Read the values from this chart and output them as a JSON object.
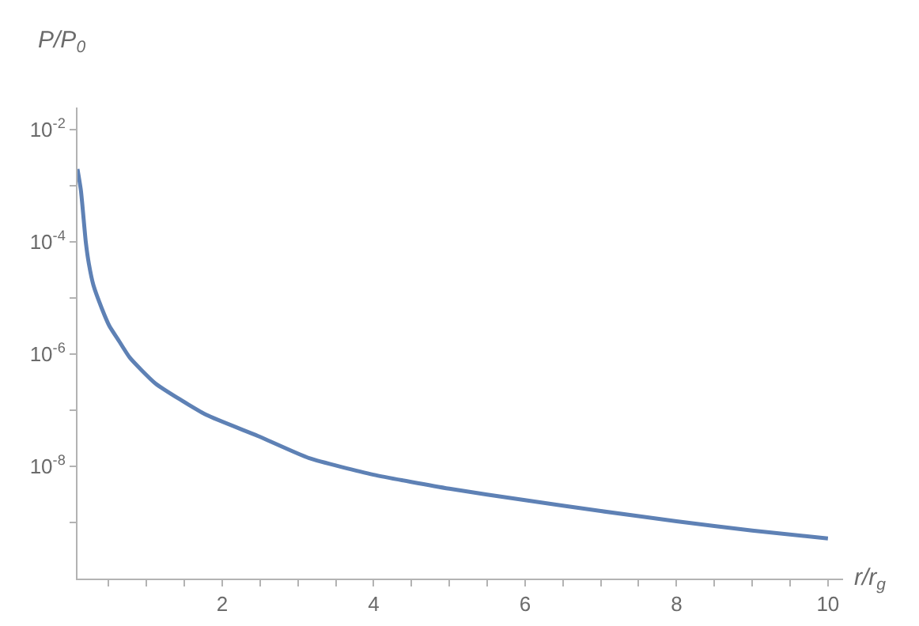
{
  "chart_data": {
    "type": "line",
    "xlabel": "r/r$_{g}$",
    "ylabel": "P/P$_{0}$",
    "log": "y",
    "grid": false,
    "marker": "none",
    "line_style": "solid",
    "x": [
      0.09,
      0.136,
      0.2,
      0.24,
      0.3,
      0.41,
      0.51,
      0.64,
      0.78,
      1.12,
      1.79,
      2.47,
      3.15,
      4,
      5,
      6,
      7,
      8,
      9,
      10
    ],
    "series": [
      {
        "color": "#5e81b5",
        "values": [
          0.002,
          0.00081,
          9.8e-05,
          4.1e-05,
          1.7e-05,
          6.6e-06,
          3.2e-06,
          1.7e-06,
          8.7e-07,
          3e-07,
          8.3e-08,
          3.5e-08,
          1.4e-08,
          7.1e-09,
          4e-09,
          2.5e-09,
          1.6e-09,
          1.05e-09,
          7.2e-10,
          5.2e-10
        ]
      }
    ],
    "xlim": [
      0.09,
      10.2
    ],
    "ylim": [
      1e-10,
      0.025
    ],
    "xticks": [
      {
        "value": 0.5,
        "label": null
      },
      {
        "value": 1,
        "label": null
      },
      {
        "value": 1.5,
        "label": null
      },
      2,
      {
        "value": 2.5,
        "label": null
      },
      {
        "value": 3,
        "label": null
      },
      {
        "value": 3.5,
        "label": null
      },
      4,
      {
        "value": 4.5,
        "label": null
      },
      {
        "value": 5,
        "label": null
      },
      {
        "value": 5.5,
        "label": null
      },
      6,
      {
        "value": 6.5,
        "label": null
      },
      {
        "value": 7,
        "label": null
      },
      {
        "value": 7.5,
        "label": null
      },
      8,
      {
        "value": 8.5,
        "label": null
      },
      {
        "value": 9,
        "label": null
      },
      {
        "value": 9.5,
        "label": null
      },
      10
    ],
    "yticks": [
      {
        "value": 0.01,
        "label": "10$^{-2}$"
      },
      {
        "value": 0.001,
        "label": null
      },
      {
        "value": 0.0001,
        "label": "10$^{-4}$"
      },
      {
        "value": 1e-05,
        "label": null
      },
      {
        "value": 1e-06,
        "label": "10$^{-6}$"
      },
      {
        "value": 1e-07,
        "label": null
      },
      {
        "value": 1e-08,
        "label": "10$^{-8}$"
      },
      {
        "value": 1e-09,
        "label": null
      }
    ]
  }
}
